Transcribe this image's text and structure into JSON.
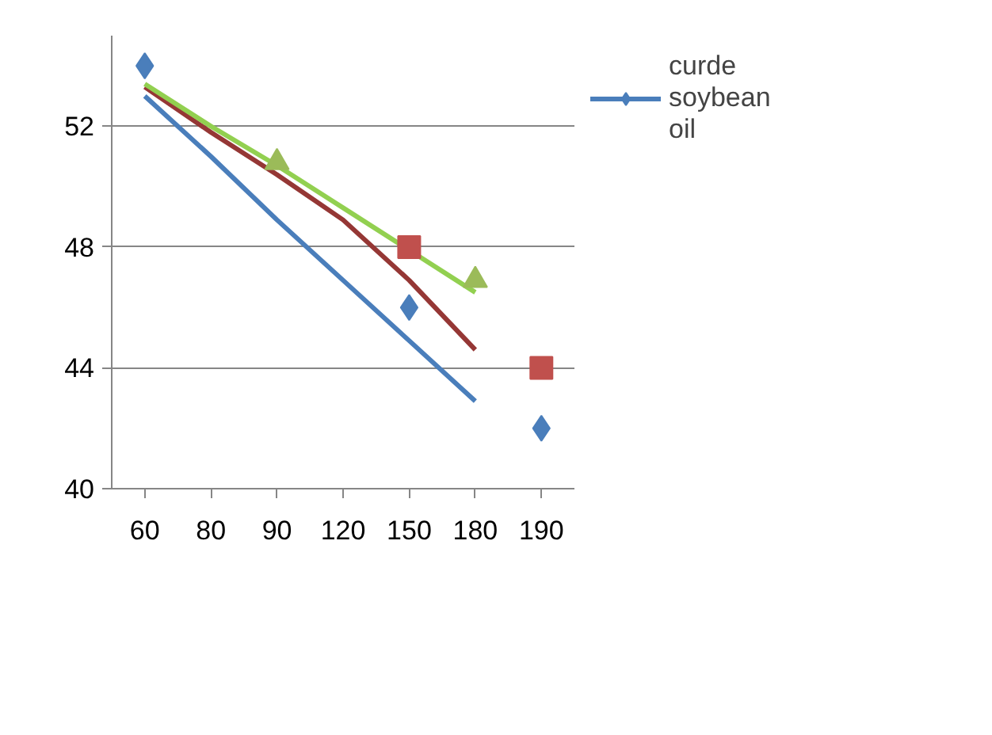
{
  "chart_data": {
    "type": "scatter",
    "categories": [
      "60",
      "80",
      "90",
      "120",
      "150",
      "180",
      "190"
    ],
    "ylim": [
      40,
      55
    ],
    "yticks": [
      40,
      44,
      48,
      52
    ],
    "grid": "y",
    "legend": "top right",
    "series": [
      {
        "type": "line",
        "color": "#4a7ebb",
        "values": [
          53.0,
          51.0,
          48.9,
          46.9,
          44.9,
          42.9,
          null
        ],
        "marker": "none"
      },
      {
        "type": "line",
        "color": "#953735",
        "values": [
          53.3,
          51.8,
          50.4,
          48.9,
          46.9,
          44.6,
          null
        ],
        "marker": "none"
      },
      {
        "type": "line",
        "color": "#92d050",
        "values": [
          53.4,
          52.0,
          50.7,
          49.3,
          47.9,
          46.5,
          null
        ],
        "marker": "none"
      },
      {
        "name": "curde soybean oil",
        "color": "#4a7ebb",
        "values": [
          54,
          null,
          null,
          null,
          46,
          null,
          42
        ],
        "marker": "diamond"
      },
      {
        "color": "#c0504d",
        "values": [
          null,
          null,
          null,
          null,
          48,
          null,
          44
        ],
        "marker": "square"
      },
      {
        "color": "#9bbb59",
        "values": [
          null,
          null,
          50.8,
          null,
          null,
          46.9,
          null
        ],
        "marker": "triangle"
      }
    ]
  }
}
